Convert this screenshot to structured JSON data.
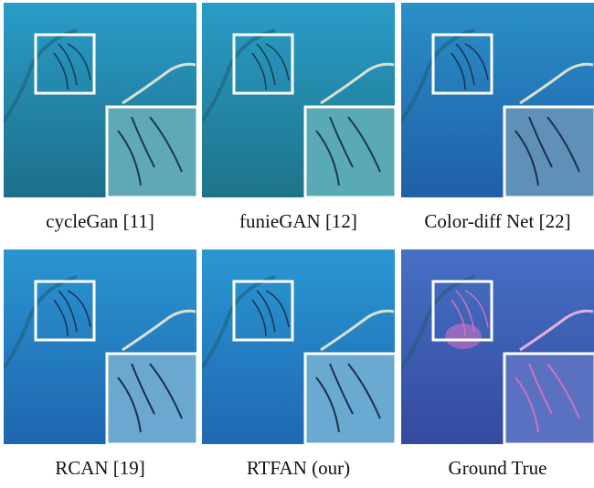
{
  "panels": [
    {
      "caption": "cycleGan [11]"
    },
    {
      "caption": "funieGAN [12]"
    },
    {
      "caption": "Color-diff Net [22]"
    },
    {
      "caption": "RCAN [19]"
    },
    {
      "caption": "RTFAN (our)"
    },
    {
      "caption": "Ground True"
    }
  ]
}
